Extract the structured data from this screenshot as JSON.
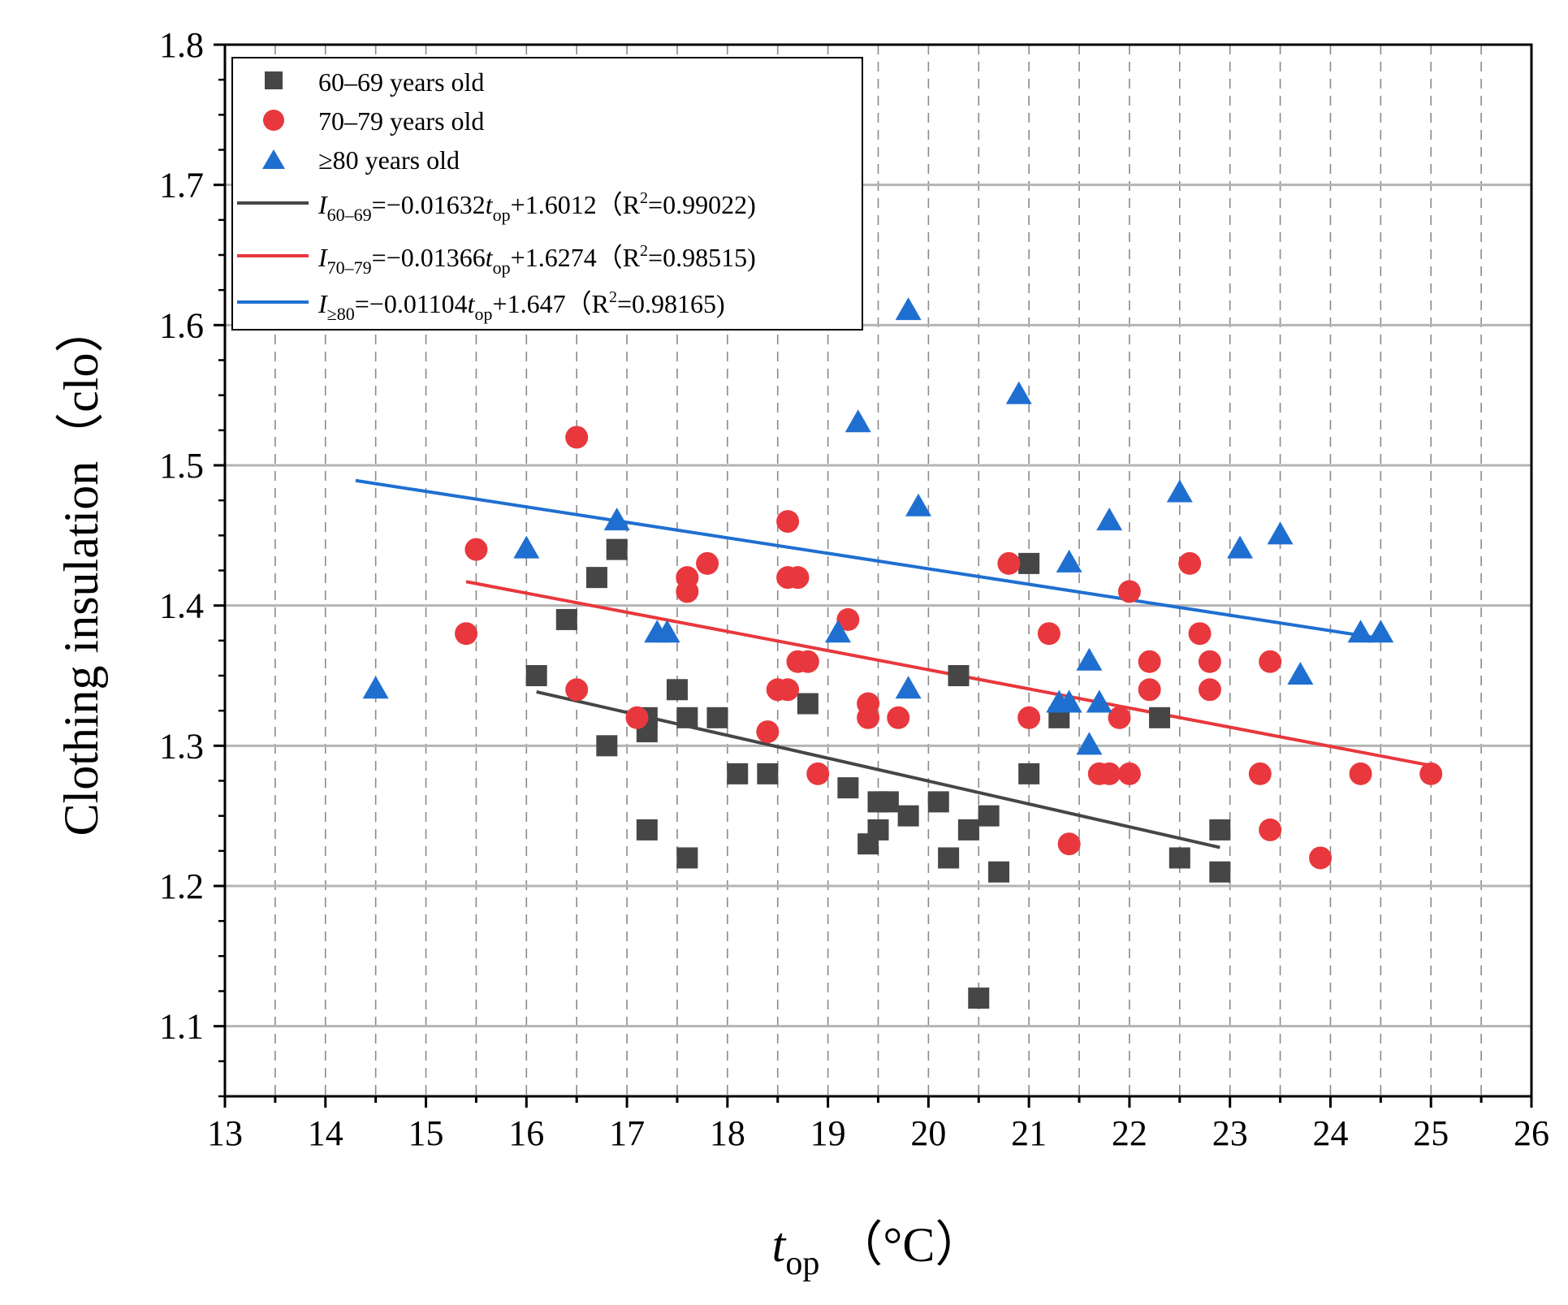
{
  "chart_data": {
    "type": "scatter",
    "title": "",
    "xlabel": {
      "main": "t",
      "sub": "op",
      "unit": "（°C）"
    },
    "ylabel": "Clothing insulation（clo）",
    "xlim": [
      13,
      26
    ],
    "ylim": [
      1.05,
      1.8
    ],
    "x_ticks": [
      13,
      14,
      15,
      16,
      17,
      18,
      19,
      20,
      21,
      22,
      23,
      24,
      25,
      26
    ],
    "x_tick_labels": [
      "13",
      "14",
      "15",
      "16",
      "17",
      "18",
      "19",
      "20",
      "21",
      "22",
      "23",
      "24",
      "25",
      "26"
    ],
    "y_ticks": [
      1.1,
      1.2,
      1.3,
      1.4,
      1.5,
      1.6,
      1.7,
      1.8
    ],
    "y_tick_labels": [
      "1.1",
      "1.2",
      "1.3",
      "1.4",
      "1.5",
      "1.6",
      "1.7",
      "1.8"
    ],
    "grid": {
      "horizontal": "solid gray at major y ticks",
      "vertical": "dashed at 0.5 °C steps"
    },
    "legend_position": "top-left",
    "series": [
      {
        "name": "60–69 years old",
        "marker": "square",
        "color": "#464646",
        "points": [
          [
            16.1,
            1.35
          ],
          [
            16.4,
            1.39
          ],
          [
            16.7,
            1.42
          ],
          [
            16.8,
            1.3
          ],
          [
            16.9,
            1.44
          ],
          [
            17.2,
            1.32
          ],
          [
            17.2,
            1.31
          ],
          [
            17.2,
            1.24
          ],
          [
            17.5,
            1.34
          ],
          [
            17.6,
            1.32
          ],
          [
            17.6,
            1.22
          ],
          [
            17.9,
            1.32
          ],
          [
            18.1,
            1.28
          ],
          [
            18.4,
            1.28
          ],
          [
            18.8,
            1.33
          ],
          [
            19.2,
            1.27
          ],
          [
            19.4,
            1.23
          ],
          [
            19.5,
            1.24
          ],
          [
            19.5,
            1.26
          ],
          [
            19.6,
            1.26
          ],
          [
            19.8,
            1.25
          ],
          [
            20.1,
            1.26
          ],
          [
            20.2,
            1.22
          ],
          [
            20.3,
            1.35
          ],
          [
            20.4,
            1.24
          ],
          [
            20.5,
            1.12
          ],
          [
            20.6,
            1.25
          ],
          [
            20.7,
            1.21
          ],
          [
            21.0,
            1.43
          ],
          [
            21.0,
            1.28
          ],
          [
            21.3,
            1.32
          ],
          [
            22.3,
            1.32
          ],
          [
            22.5,
            1.22
          ],
          [
            22.9,
            1.24
          ],
          [
            22.9,
            1.21
          ]
        ]
      },
      {
        "name": "70–79 years old",
        "marker": "circle",
        "color": "#e8383d",
        "points": [
          [
            15.4,
            1.38
          ],
          [
            15.5,
            1.44
          ],
          [
            16.5,
            1.52
          ],
          [
            16.5,
            1.34
          ],
          [
            17.1,
            1.32
          ],
          [
            17.6,
            1.42
          ],
          [
            17.6,
            1.41
          ],
          [
            17.8,
            1.43
          ],
          [
            18.4,
            1.31
          ],
          [
            18.5,
            1.34
          ],
          [
            18.6,
            1.34
          ],
          [
            18.6,
            1.46
          ],
          [
            18.6,
            1.42
          ],
          [
            18.7,
            1.42
          ],
          [
            18.7,
            1.36
          ],
          [
            18.8,
            1.36
          ],
          [
            18.9,
            1.28
          ],
          [
            19.2,
            1.39
          ],
          [
            19.4,
            1.33
          ],
          [
            19.4,
            1.32
          ],
          [
            19.7,
            1.32
          ],
          [
            20.8,
            1.43
          ],
          [
            21.0,
            1.32
          ],
          [
            21.2,
            1.38
          ],
          [
            21.4,
            1.23
          ],
          [
            21.7,
            1.28
          ],
          [
            21.8,
            1.28
          ],
          [
            21.9,
            1.32
          ],
          [
            22.0,
            1.41
          ],
          [
            22.0,
            1.28
          ],
          [
            22.2,
            1.36
          ],
          [
            22.2,
            1.34
          ],
          [
            22.6,
            1.43
          ],
          [
            22.7,
            1.38
          ],
          [
            22.8,
            1.36
          ],
          [
            22.8,
            1.34
          ],
          [
            23.3,
            1.28
          ],
          [
            23.4,
            1.36
          ],
          [
            23.4,
            1.24
          ],
          [
            23.9,
            1.22
          ],
          [
            24.3,
            1.28
          ],
          [
            25.0,
            1.28
          ]
        ]
      },
      {
        "name": "≥80 years old",
        "marker": "triangle",
        "color": "#1f6fd1",
        "points": [
          [
            14.5,
            1.34
          ],
          [
            16.0,
            1.44
          ],
          [
            16.9,
            1.46
          ],
          [
            17.3,
            1.38
          ],
          [
            17.4,
            1.38
          ],
          [
            19.1,
            1.38
          ],
          [
            19.3,
            1.53
          ],
          [
            19.8,
            1.61
          ],
          [
            19.8,
            1.34
          ],
          [
            19.9,
            1.47
          ],
          [
            20.9,
            1.55
          ],
          [
            21.3,
            1.33
          ],
          [
            21.4,
            1.43
          ],
          [
            21.4,
            1.33
          ],
          [
            21.6,
            1.36
          ],
          [
            21.6,
            1.3
          ],
          [
            21.7,
            1.33
          ],
          [
            21.8,
            1.46
          ],
          [
            22.5,
            1.48
          ],
          [
            23.1,
            1.44
          ],
          [
            23.5,
            1.45
          ],
          [
            23.7,
            1.35
          ],
          [
            24.3,
            1.38
          ],
          [
            24.5,
            1.38
          ]
        ]
      }
    ],
    "fits": [
      {
        "name": "60–69 fit",
        "color": "#464646",
        "slope": -0.01632,
        "intercept": 1.6012,
        "x_range": [
          16.1,
          22.9
        ],
        "label": {
          "I": "I",
          "sub": "60–69",
          "eq1": "=−0.01632",
          "t": "t",
          "tsub": "op",
          "eq2": "+1.6012（R",
          "sup": "2",
          "eq3": "=0.99022)"
        }
      },
      {
        "name": "70–79 fit",
        "color": "#e8383d",
        "slope": -0.01366,
        "intercept": 1.6274,
        "x_range": [
          15.4,
          25.0
        ],
        "label": {
          "I": "I",
          "sub": "70–79",
          "eq1": "=−0.01366",
          "t": "t",
          "tsub": "op",
          "eq2": "+1.6274（R",
          "sup": "2",
          "eq3": "=0.98515)"
        }
      },
      {
        "name": "≥80 fit",
        "color": "#1f6fd1",
        "slope": -0.01104,
        "intercept": 1.647,
        "x_range": [
          14.3,
          24.5
        ],
        "label": {
          "I": "I",
          "sub": "≥80",
          "eq1": "=−0.01104",
          "t": "t",
          "tsub": "op",
          "eq2": "+1.647（R",
          "sup": "2",
          "eq3": "=0.98165)"
        }
      }
    ]
  }
}
